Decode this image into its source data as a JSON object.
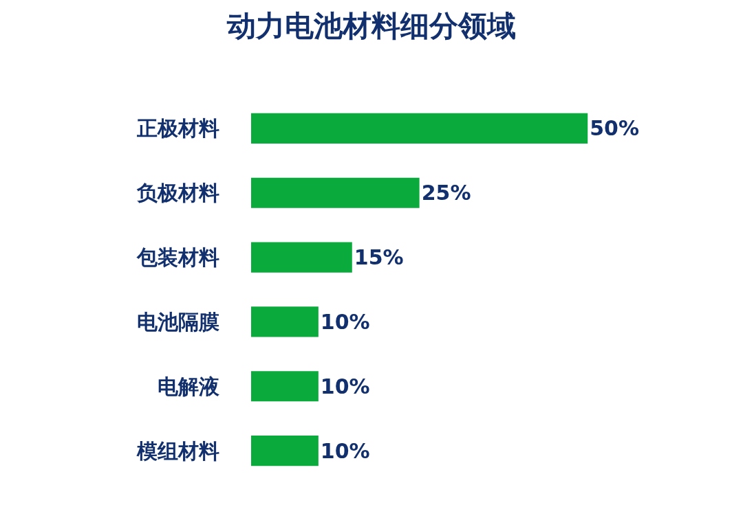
{
  "chart_data": {
    "type": "bar",
    "orientation": "horizontal",
    "title": "动力电池材料细分领域",
    "categories": [
      "正极材料",
      "负极材料",
      "包装材料",
      "电池隔膜",
      "电解液",
      "模组材料"
    ],
    "values": [
      50,
      25,
      15,
      10,
      10,
      10
    ],
    "value_labels": [
      "50%",
      "25%",
      "15%",
      "10%",
      "10%",
      "10%"
    ],
    "color": "#0aaa3c",
    "tick_labels": "y"
  }
}
